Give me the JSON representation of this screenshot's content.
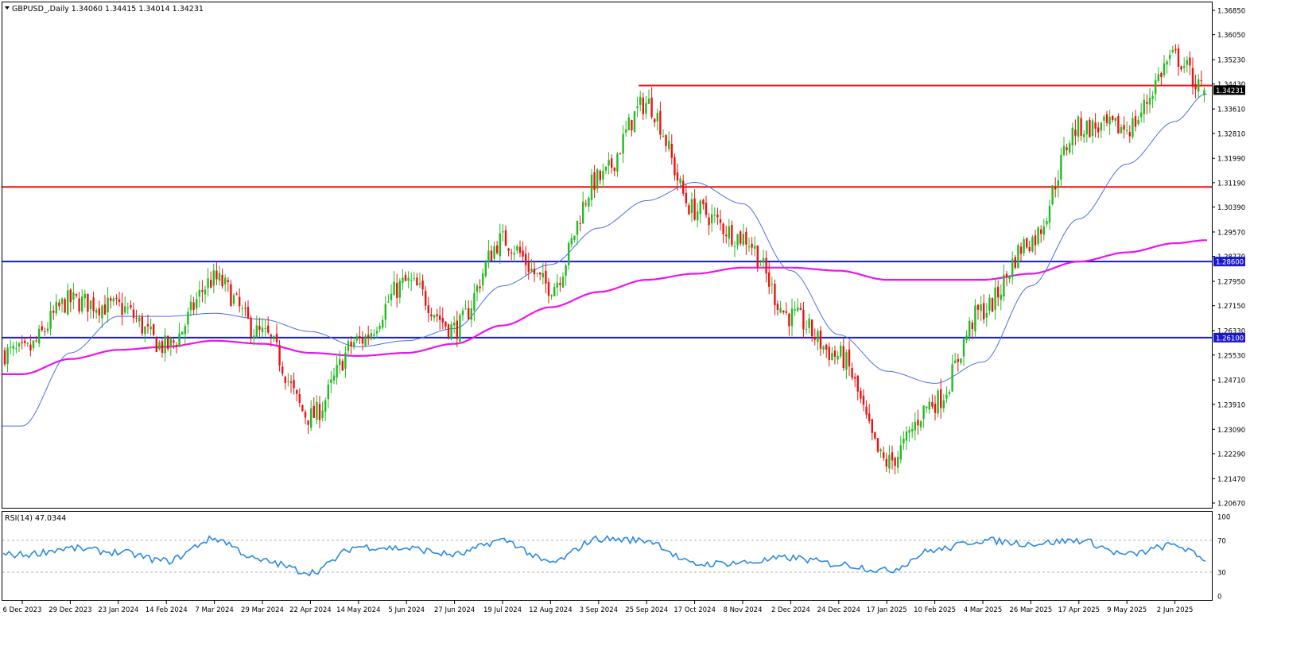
{
  "header": {
    "symbol_line": "GBPUSD_,Daily  1.34060 1.34415 1.34014 1.34231"
  },
  "rsi_panel": {
    "label": "RSI(14) 47.0344",
    "levels": [
      70,
      30
    ],
    "ticks": [
      "100",
      "70",
      "30",
      "0"
    ]
  },
  "colors": {
    "bull": "#22bb22",
    "bear": "#ee1111",
    "ma_fast": "#4a6fe6",
    "ma_slow": "#ee11ee",
    "horizontal_blue": "#1a1acc",
    "horizontal_red": "#ee1111",
    "rsi_line": "#2a8ae0",
    "grid": "#000000"
  },
  "price_axis_ticks": [
    "1.36850",
    "1.36050",
    "1.35230",
    "1.34430",
    "1.33610",
    "1.32810",
    "1.31990",
    "1.31190",
    "1.30390",
    "1.29570",
    "1.28770",
    "1.27950",
    "1.27150",
    "1.26330",
    "1.25530",
    "1.24710",
    "1.23910",
    "1.23090",
    "1.22290",
    "1.21470",
    "1.20670"
  ],
  "price_tags": {
    "current": "1.34231",
    "blue_upper": "1.28600",
    "blue_lower": "1.26100"
  },
  "date_axis_ticks": [
    "6 Dec 2023",
    "29 Dec 2023",
    "23 Jan 2024",
    "14 Feb 2024",
    "7 Mar 2024",
    "29 Mar 2024",
    "22 Apr 2024",
    "14 May 2024",
    "5 Jun 2024",
    "27 Jun 2024",
    "19 Jul 2024",
    "12 Aug 2024",
    "3 Sep 2024",
    "25 Sep 2024",
    "17 Oct 2024",
    "8 Nov 2024",
    "2 Dec 2024",
    "24 Dec 2024",
    "17 Jan 2025",
    "10 Feb 2025",
    "4 Mar 2025",
    "26 Mar 2025",
    "17 Apr 2025",
    "9 May 2025",
    "2 Jun 2025"
  ],
  "chart_data": {
    "type": "candlestick",
    "symbol": "GBPUSD_",
    "timeframe": "Daily",
    "last_bar": {
      "open": 1.3406,
      "high": 1.34415,
      "low": 1.34014,
      "close": 1.34231
    },
    "ylim": [
      1.2067,
      1.3685
    ],
    "horizontal_lines": [
      {
        "color": "blue",
        "price": 1.286
      },
      {
        "color": "blue",
        "price": 1.261
      },
      {
        "color": "red",
        "price": 1.3438,
        "from": "25 Sep 2024"
      },
      {
        "color": "red",
        "price": 1.3105
      }
    ],
    "price_anchors": [
      [
        "6 Dec 2023",
        1.256
      ],
      [
        "29 Dec 2023",
        1.273
      ],
      [
        "23 Jan 2024",
        1.271
      ],
      [
        "14 Feb 2024",
        1.258
      ],
      [
        "7 Mar 2024",
        1.28
      ],
      [
        "29 Mar 2024",
        1.262
      ],
      [
        "22 Apr 2024",
        1.235
      ],
      [
        "14 May 2024",
        1.26
      ],
      [
        "5 Jun 2024",
        1.279
      ],
      [
        "27 Jun 2024",
        1.264
      ],
      [
        "19 Jul 2024",
        1.293
      ],
      [
        "12 Aug 2024",
        1.278
      ],
      [
        "3 Sep 2024",
        1.313
      ],
      [
        "25 Sep 2024",
        1.338
      ],
      [
        "17 Oct 2024",
        1.303
      ],
      [
        "8 Nov 2024",
        1.294
      ],
      [
        "2 Dec 2024",
        1.268
      ],
      [
        "24 Dec 2024",
        1.255
      ],
      [
        "17 Jan 2025",
        1.22
      ],
      [
        "10 Feb 2025",
        1.24
      ],
      [
        "4 Mar 2025",
        1.27
      ],
      [
        "26 Mar 2025",
        1.293
      ],
      [
        "17 Apr 2025",
        1.33
      ],
      [
        "9 May 2025",
        1.33
      ],
      [
        "2 Jun 2025",
        1.353
      ],
      [
        "17 Jun 2025",
        1.342
      ]
    ],
    "ma_fast": {
      "anchors": [
        [
          "6 Dec 2023",
          1.232
        ],
        [
          "29 Dec 2023",
          1.256
        ],
        [
          "23 Jan 2024",
          1.268
        ],
        [
          "14 Feb 2024",
          1.268
        ],
        [
          "7 Mar 2024",
          1.269
        ],
        [
          "29 Mar 2024",
          1.267
        ],
        [
          "22 Apr 2024",
          1.263
        ],
        [
          "14 May 2024",
          1.258
        ],
        [
          "5 Jun 2024",
          1.26
        ],
        [
          "27 Jun 2024",
          1.264
        ],
        [
          "19 Jul 2024",
          1.278
        ],
        [
          "12 Aug 2024",
          1.285
        ],
        [
          "3 Sep 2024",
          1.297
        ],
        [
          "25 Sep 2024",
          1.306
        ],
        [
          "17 Oct 2024",
          1.312
        ],
        [
          "8 Nov 2024",
          1.305
        ],
        [
          "2 Dec 2024",
          1.283
        ],
        [
          "24 Dec 2024",
          1.262
        ],
        [
          "17 Jan 2025",
          1.25
        ],
        [
          "10 Feb 2025",
          1.246
        ],
        [
          "4 Mar 2025",
          1.253
        ],
        [
          "26 Mar 2025",
          1.278
        ],
        [
          "17 Apr 2025",
          1.3
        ],
        [
          "9 May 2025",
          1.318
        ],
        [
          "2 Jun 2025",
          1.332
        ],
        [
          "17 Jun 2025",
          1.341
        ]
      ]
    },
    "ma_slow": {
      "anchors": [
        [
          "6 Dec 2023",
          1.249
        ],
        [
          "29 Dec 2023",
          1.254
        ],
        [
          "23 Jan 2024",
          1.257
        ],
        [
          "14 Feb 2024",
          1.258
        ],
        [
          "7 Mar 2024",
          1.26
        ],
        [
          "29 Mar 2024",
          1.259
        ],
        [
          "22 Apr 2024",
          1.256
        ],
        [
          "14 May 2024",
          1.255
        ],
        [
          "5 Jun 2024",
          1.256
        ],
        [
          "27 Jun 2024",
          1.259
        ],
        [
          "19 Jul 2024",
          1.265
        ],
        [
          "12 Aug 2024",
          1.271
        ],
        [
          "3 Sep 2024",
          1.276
        ],
        [
          "25 Sep 2024",
          1.28
        ],
        [
          "17 Oct 2024",
          1.282
        ],
        [
          "8 Nov 2024",
          1.284
        ],
        [
          "2 Dec 2024",
          1.284
        ],
        [
          "24 Dec 2024",
          1.283
        ],
        [
          "17 Jan 2025",
          1.28
        ],
        [
          "10 Feb 2025",
          1.28
        ],
        [
          "4 Mar 2025",
          1.28
        ],
        [
          "26 Mar 2025",
          1.282
        ],
        [
          "17 Apr 2025",
          1.286
        ],
        [
          "9 May 2025",
          1.289
        ],
        [
          "2 Jun 2025",
          1.292
        ],
        [
          "17 Jun 2025",
          1.293
        ]
      ]
    },
    "rsi": {
      "ylim": [
        0,
        100
      ],
      "anchors": [
        [
          "6 Dec 2023",
          52
        ],
        [
          "29 Dec 2023",
          60
        ],
        [
          "23 Jan 2024",
          55
        ],
        [
          "14 Feb 2024",
          44
        ],
        [
          "7 Mar 2024",
          72
        ],
        [
          "29 Mar 2024",
          44
        ],
        [
          "22 Apr 2024",
          30
        ],
        [
          "14 May 2024",
          62
        ],
        [
          "5 Jun 2024",
          60
        ],
        [
          "27 Jun 2024",
          52
        ],
        [
          "19 Jul 2024",
          70
        ],
        [
          "12 Aug 2024",
          42
        ],
        [
          "3 Sep 2024",
          72
        ],
        [
          "25 Sep 2024",
          70
        ],
        [
          "17 Oct 2024",
          40
        ],
        [
          "8 Nov 2024",
          42
        ],
        [
          "2 Dec 2024",
          48
        ],
        [
          "24 Dec 2024",
          40
        ],
        [
          "17 Jan 2025",
          32
        ],
        [
          "10 Feb 2025",
          58
        ],
        [
          "4 Mar 2025",
          70
        ],
        [
          "26 Mar 2025",
          66
        ],
        [
          "17 Apr 2025",
          70
        ],
        [
          "9 May 2025",
          52
        ],
        [
          "2 Jun 2025",
          64
        ],
        [
          "17 Jun 2025",
          47
        ]
      ]
    }
  }
}
